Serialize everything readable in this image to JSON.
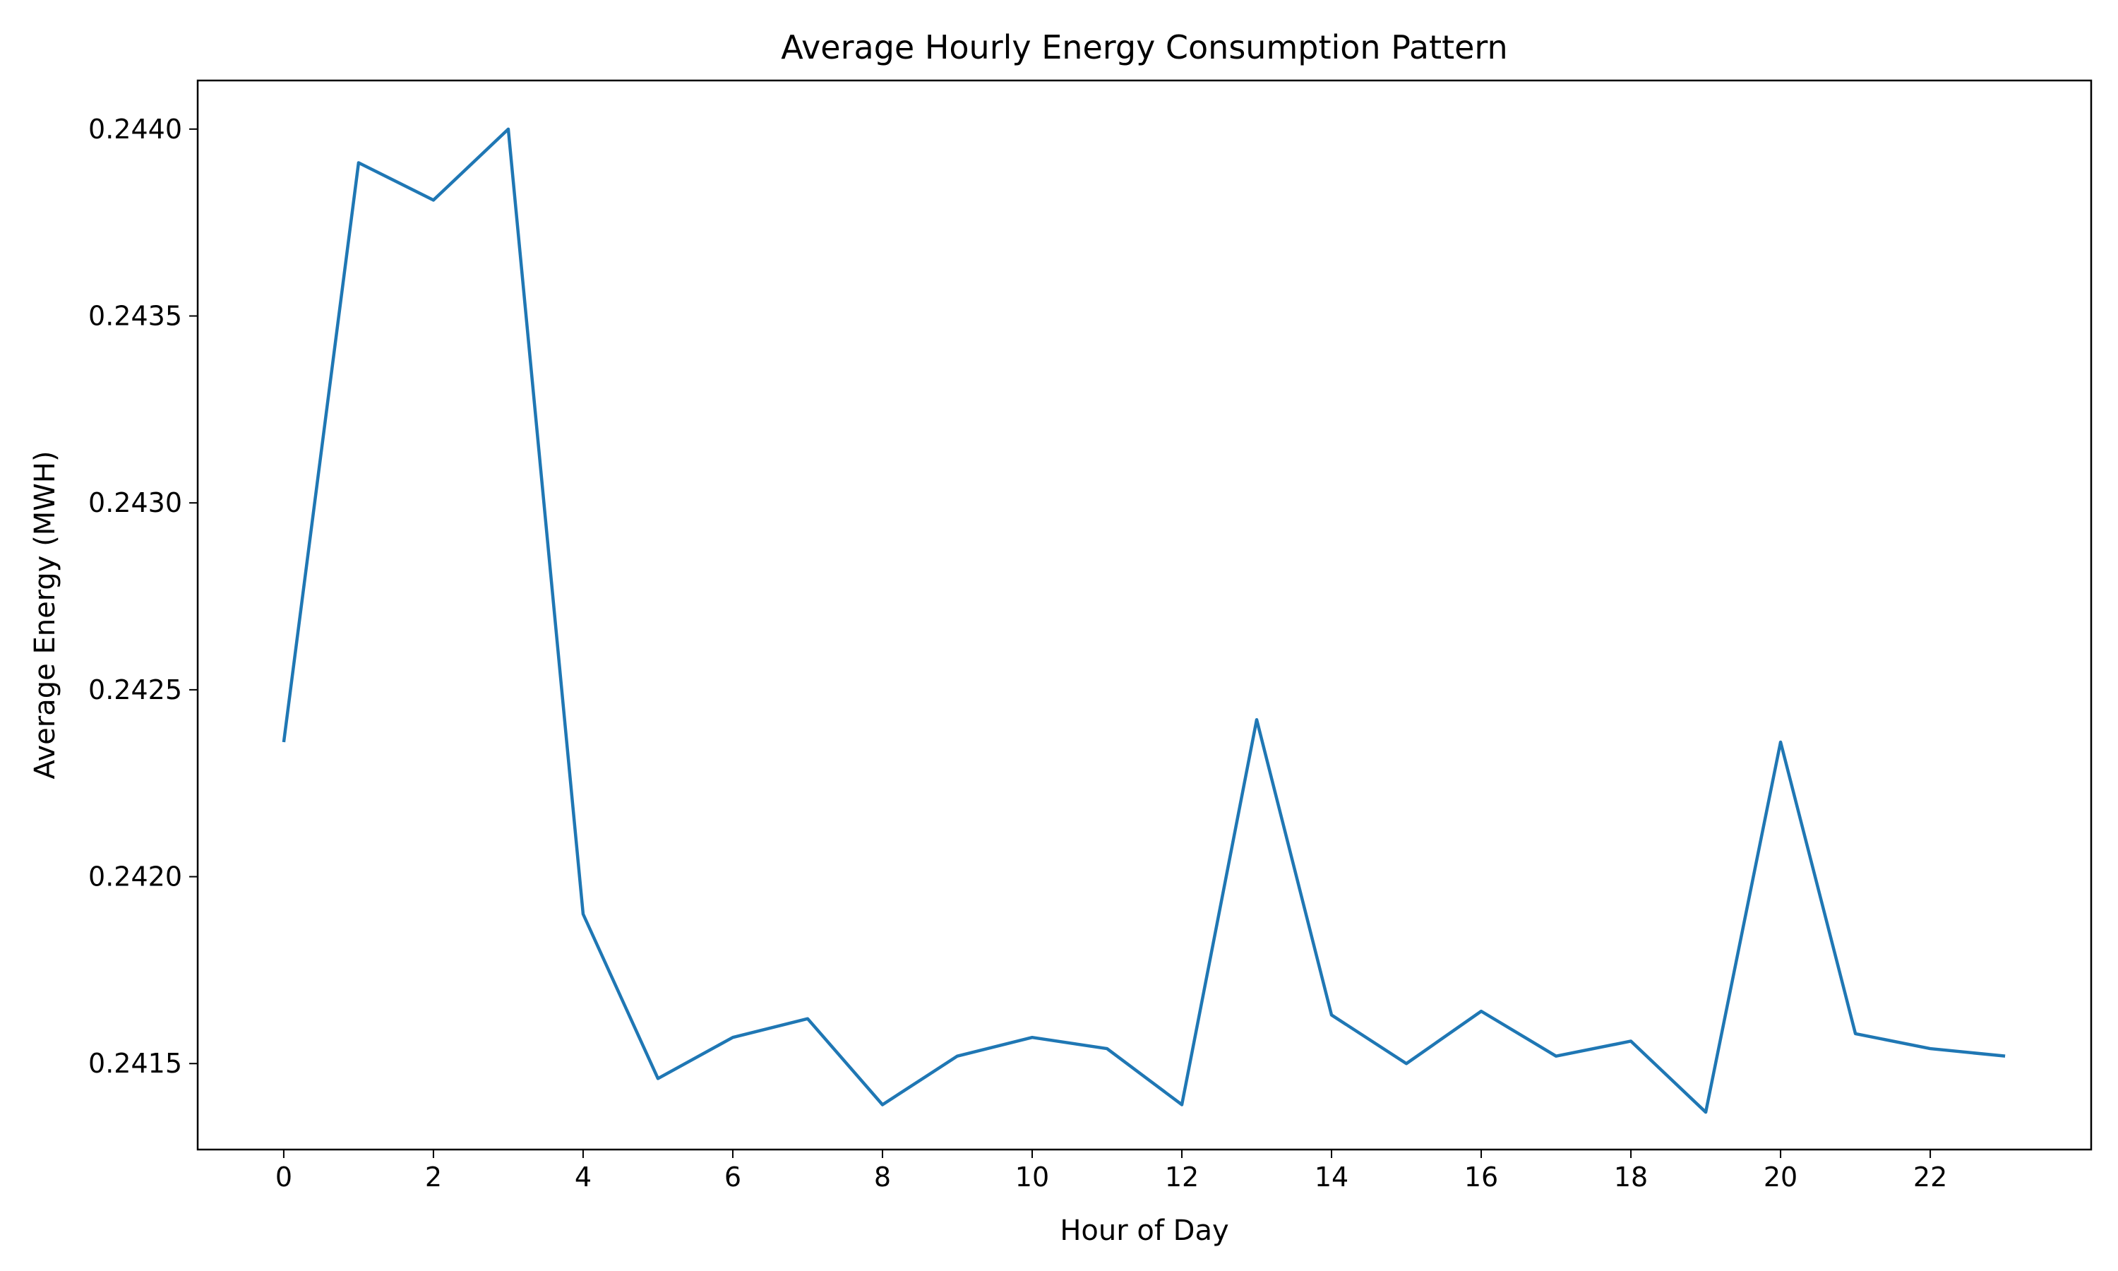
{
  "chart_data": {
    "type": "line",
    "title": "Average Hourly Energy Consumption Pattern",
    "xlabel": "Hour of Day",
    "ylabel": "Average Energy (MWH)",
    "x": [
      0,
      1,
      2,
      3,
      4,
      5,
      6,
      7,
      8,
      9,
      10,
      11,
      12,
      13,
      14,
      15,
      16,
      17,
      18,
      19,
      20,
      21,
      22,
      23
    ],
    "series": [
      {
        "color": "#1f77b4",
        "values": [
          0.24236,
          0.24391,
          0.24381,
          0.244,
          0.2419,
          0.24146,
          0.24157,
          0.24162,
          0.24139,
          0.24152,
          0.24157,
          0.24154,
          0.24139,
          0.24242,
          0.24163,
          0.2415,
          0.24164,
          0.24152,
          0.24156,
          0.24137,
          0.24236,
          0.24158,
          0.24154,
          0.24152
        ]
      }
    ],
    "xlim": [
      -1.15,
      24.15
    ],
    "ylim": [
      0.24127,
      0.24413
    ],
    "xticks": [
      0,
      2,
      4,
      6,
      8,
      10,
      12,
      14,
      16,
      18,
      20,
      22
    ],
    "xtick_labels": [
      "0",
      "2",
      "4",
      "6",
      "8",
      "10",
      "12",
      "14",
      "16",
      "18",
      "20",
      "22"
    ],
    "yticks": [
      0.2415,
      0.242,
      0.2425,
      0.243,
      0.2435,
      0.244
    ],
    "ytick_labels": [
      "0.2415",
      "0.2420",
      "0.2425",
      "0.2430",
      "0.2435",
      "0.2440"
    ],
    "grid": false,
    "legend": "none"
  }
}
